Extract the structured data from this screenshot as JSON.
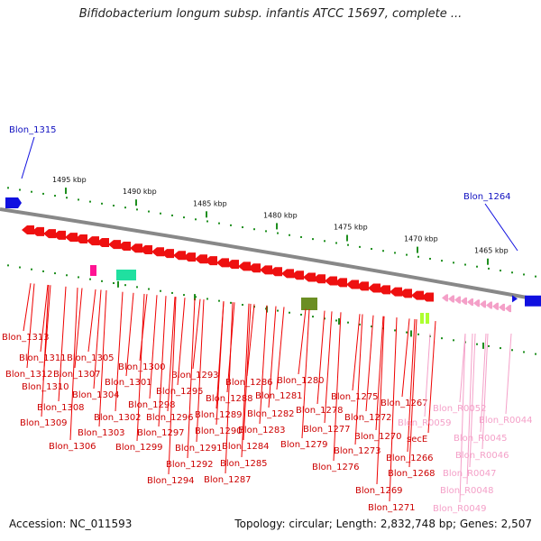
{
  "title": "Bifidobacterium longum subsp. infantis ATCC 15697, complete ...",
  "footer": {
    "accession": "Accession: NC_011593",
    "summary": "Topology: circular; Length: 2,832,748 bp; Genes: 2,507"
  },
  "colors": {
    "forward_gene": "#1010e0",
    "reverse_gene": "#ee1010",
    "rna_gene": "#f4a0c8",
    "backbone": "#888888",
    "tick": "#1f8f1f"
  },
  "scale_labels": [
    "1495 kbp",
    "1490 kbp",
    "1485 kbp",
    "1480 kbp",
    "1475 kbp",
    "1470 kbp",
    "1465 kbp"
  ],
  "top_labels": [
    {
      "text": "Blon_1315",
      "color": "#1010c0"
    },
    {
      "text": "Blon_1264",
      "color": "#1010c0"
    }
  ],
  "gene_labels": [
    {
      "text": "Blon_1313",
      "color": "#cc0000"
    },
    {
      "text": "Blon_1311",
      "color": "#cc0000"
    },
    {
      "text": "Blon_1305",
      "color": "#cc0000"
    },
    {
      "text": "Blon_1312",
      "color": "#cc0000"
    },
    {
      "text": "Blon_1307",
      "color": "#cc0000"
    },
    {
      "text": "Blon_1300",
      "color": "#cc0000"
    },
    {
      "text": "Blon_1310",
      "color": "#cc0000"
    },
    {
      "text": "Blon_1304",
      "color": "#cc0000"
    },
    {
      "text": "Blon_1301",
      "color": "#cc0000"
    },
    {
      "text": "Blon_1293",
      "color": "#cc0000"
    },
    {
      "text": "Blon_1295",
      "color": "#cc0000"
    },
    {
      "text": "Blon_1286",
      "color": "#cc0000"
    },
    {
      "text": "Blon_1280",
      "color": "#cc0000"
    },
    {
      "text": "Blon_1308",
      "color": "#cc0000"
    },
    {
      "text": "Blon_1298",
      "color": "#cc0000"
    },
    {
      "text": "Blon_1288",
      "color": "#cc0000"
    },
    {
      "text": "Blon_1281",
      "color": "#cc0000"
    },
    {
      "text": "Blon_1275",
      "color": "#cc0000"
    },
    {
      "text": "Blon_1267",
      "color": "#cc0000"
    },
    {
      "text": "Blon_1302",
      "color": "#cc0000"
    },
    {
      "text": "Blon_1296",
      "color": "#cc0000"
    },
    {
      "text": "Blon_1289",
      "color": "#cc0000"
    },
    {
      "text": "Blon_1282",
      "color": "#cc0000"
    },
    {
      "text": "Blon_1278",
      "color": "#cc0000"
    },
    {
      "text": "Blon_1272",
      "color": "#cc0000"
    },
    {
      "text": "Blon_1309",
      "color": "#cc0000"
    },
    {
      "text": "Blon_1303",
      "color": "#cc0000"
    },
    {
      "text": "Blon_1297",
      "color": "#cc0000"
    },
    {
      "text": "Blon_1290",
      "color": "#cc0000"
    },
    {
      "text": "Blon_1283",
      "color": "#cc0000"
    },
    {
      "text": "Blon_1277",
      "color": "#cc0000"
    },
    {
      "text": "Blon_1270",
      "color": "#cc0000"
    },
    {
      "text": "Blon_1306",
      "color": "#cc0000"
    },
    {
      "text": "Blon_1299",
      "color": "#cc0000"
    },
    {
      "text": "Blon_1291",
      "color": "#cc0000"
    },
    {
      "text": "Blon_1284",
      "color": "#cc0000"
    },
    {
      "text": "Blon_1279",
      "color": "#cc0000"
    },
    {
      "text": "Blon_1273",
      "color": "#cc0000"
    },
    {
      "text": "secE",
      "color": "#cc0000"
    },
    {
      "text": "Blon_1266",
      "color": "#cc0000"
    },
    {
      "text": "Blon_1292",
      "color": "#cc0000"
    },
    {
      "text": "Blon_1285",
      "color": "#cc0000"
    },
    {
      "text": "Blon_1276",
      "color": "#cc0000"
    },
    {
      "text": "Blon_1268",
      "color": "#cc0000"
    },
    {
      "text": "Blon_1294",
      "color": "#cc0000"
    },
    {
      "text": "Blon_1287",
      "color": "#cc0000"
    },
    {
      "text": "Blon_1269",
      "color": "#cc0000"
    },
    {
      "text": "Blon_1271",
      "color": "#cc0000"
    },
    {
      "text": "Blon_R0052",
      "color": "#f4a0c8"
    },
    {
      "text": "Blon_R0059",
      "color": "#f4a0c8"
    },
    {
      "text": "Blon_R0044",
      "color": "#f4a0c8"
    },
    {
      "text": "Blon_R0045",
      "color": "#f4a0c8"
    },
    {
      "text": "Blon_R0046",
      "color": "#f4a0c8"
    },
    {
      "text": "Blon_R0047",
      "color": "#f4a0c8"
    },
    {
      "text": "Blon_R0048",
      "color": "#f4a0c8"
    },
    {
      "text": "Blon_R0049",
      "color": "#f4a0c8"
    }
  ]
}
